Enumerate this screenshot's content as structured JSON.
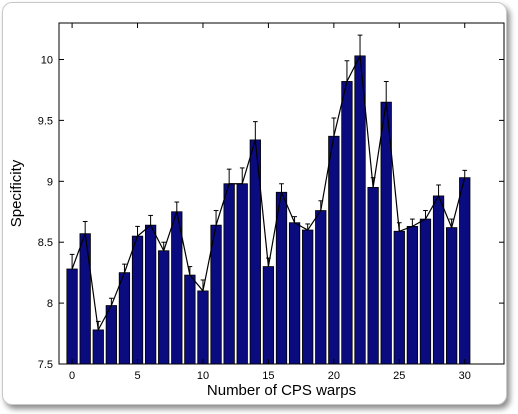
{
  "chart_data": {
    "type": "bar",
    "xlabel": "Number of CPS warps",
    "ylabel": "Specificity",
    "x": [
      0,
      1,
      2,
      3,
      4,
      5,
      6,
      7,
      8,
      9,
      10,
      11,
      12,
      13,
      14,
      15,
      16,
      17,
      18,
      19,
      20,
      21,
      22,
      23,
      24,
      25,
      26,
      27,
      28,
      29,
      30
    ],
    "values": [
      8.28,
      8.57,
      7.78,
      7.98,
      8.25,
      8.55,
      8.64,
      8.43,
      8.75,
      8.23,
      8.1,
      8.64,
      8.98,
      8.98,
      9.34,
      8.3,
      8.91,
      8.66,
      8.6,
      8.76,
      9.37,
      9.82,
      10.03,
      8.95,
      9.65,
      8.59,
      8.63,
      8.69,
      8.88,
      8.62,
      9.03
    ],
    "errors": [
      0.12,
      0.1,
      0.07,
      0.06,
      0.07,
      0.08,
      0.08,
      0.07,
      0.08,
      0.07,
      0.09,
      0.12,
      0.12,
      0.13,
      0.15,
      0.07,
      0.07,
      0.05,
      0.05,
      0.08,
      0.15,
      0.17,
      0.17,
      0.08,
      0.17,
      0.07,
      0.06,
      0.07,
      0.09,
      0.07,
      0.06
    ],
    "xlim": [
      -1,
      33
    ],
    "ylim": [
      7.5,
      10.3
    ],
    "xticks": [
      0,
      5,
      10,
      15,
      20,
      25,
      30
    ],
    "yticks": [
      7.5,
      8,
      8.5,
      9,
      9.5,
      10
    ],
    "xtick_labels": [
      "0",
      "5",
      "10",
      "15",
      "20",
      "25",
      "30"
    ],
    "ytick_labels": [
      "7.5",
      "8",
      "8.5",
      "9",
      "9.5",
      "10"
    ],
    "bar_color": "#0b0b80",
    "line_color": "#000000",
    "grid": false,
    "legend": "none"
  }
}
